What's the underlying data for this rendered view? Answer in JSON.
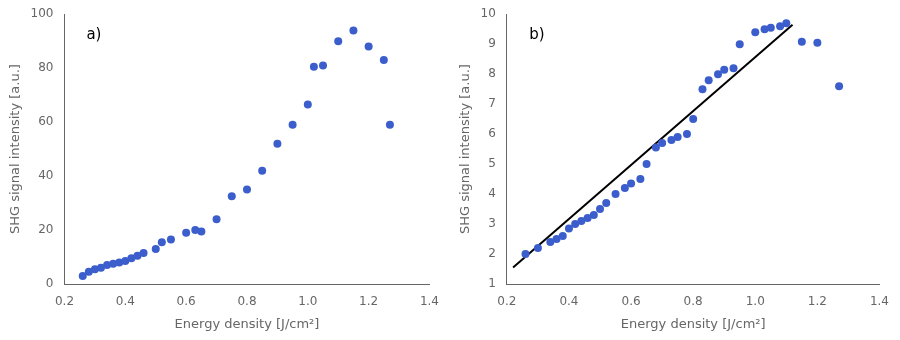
{
  "chart_data": [
    {
      "type": "scatter",
      "annotation": "a)",
      "xlabel": "Energy density [J/cm²]",
      "ylabel": "SHG signal intensity [a.u.]",
      "series": [
        {
          "type": "scatter",
          "color": "#3B5ECC",
          "x": [
            0.26,
            0.28,
            0.3,
            0.32,
            0.34,
            0.36,
            0.38,
            0.4,
            0.42,
            0.44,
            0.46,
            0.5,
            0.52,
            0.55,
            0.6,
            0.63,
            0.65,
            0.7,
            0.75,
            0.8,
            0.85,
            0.9,
            0.95,
            1.0,
            1.02,
            1.05,
            1.1,
            1.15,
            1.2,
            1.25,
            1.27
          ],
          "values": [
            3.0,
            4.5,
            5.5,
            6.0,
            7.0,
            7.5,
            8.0,
            8.5,
            9.5,
            10.5,
            11.5,
            13.0,
            15.5,
            16.5,
            19.0,
            20.0,
            19.5,
            24.0,
            32.5,
            35.0,
            42.0,
            52.0,
            59.0,
            66.5,
            80.5,
            81.0,
            90.0,
            94.0,
            88.0,
            83.0,
            59.0
          ]
        }
      ],
      "xlim": [
        0.2,
        1.4
      ],
      "ylim": [
        0,
        100
      ],
      "xticks": [
        0.2,
        0.4,
        0.6,
        0.8,
        {
          "value": 1.0,
          "label": "1.0"
        },
        1.2,
        1.4
      ],
      "yticks": [
        0,
        20,
        40,
        60,
        80,
        100
      ],
      "grid": false
    },
    {
      "type": "scatter",
      "annotation": "b)",
      "xlabel": "Energy density [J/cm²]",
      "ylabel": "SHG signal intensity [a.u.]",
      "series": [
        {
          "type": "scatter",
          "color": "#3B5ECC",
          "x": [
            0.26,
            0.3,
            0.34,
            0.36,
            0.38,
            0.4,
            0.42,
            0.44,
            0.46,
            0.48,
            0.5,
            0.52,
            0.55,
            0.58,
            0.6,
            0.63,
            0.65,
            0.68,
            0.7,
            0.73,
            0.75,
            0.78,
            0.8,
            0.83,
            0.85,
            0.88,
            0.9,
            0.93,
            0.95,
            1.0,
            1.03,
            1.05,
            1.08,
            1.1,
            1.15,
            1.2,
            1.27
          ],
          "values": [
            2.0,
            2.2,
            2.4,
            2.5,
            2.6,
            2.85,
            3.0,
            3.1,
            3.2,
            3.3,
            3.5,
            3.7,
            4.0,
            4.2,
            4.35,
            4.5,
            5.0,
            5.55,
            5.7,
            5.8,
            5.9,
            6.0,
            6.5,
            7.5,
            7.8,
            8.0,
            8.15,
            8.2,
            9.0,
            9.4,
            9.5,
            9.55,
            9.6,
            9.7,
            9.08,
            9.05,
            7.6
          ]
        },
        {
          "type": "line",
          "color": "#000000",
          "x": [
            0.22,
            1.12
          ],
          "values": [
            1.55,
            9.65
          ]
        }
      ],
      "xlim": [
        0.2,
        1.4
      ],
      "ylim": [
        1,
        10
      ],
      "xticks": [
        0.2,
        0.4,
        0.6,
        0.8,
        {
          "value": 1.0,
          "label": "1.0"
        },
        1.2,
        1.4
      ],
      "yticks": [
        1,
        2,
        3,
        4,
        5,
        6,
        7,
        8,
        9,
        10
      ],
      "grid": false
    }
  ]
}
